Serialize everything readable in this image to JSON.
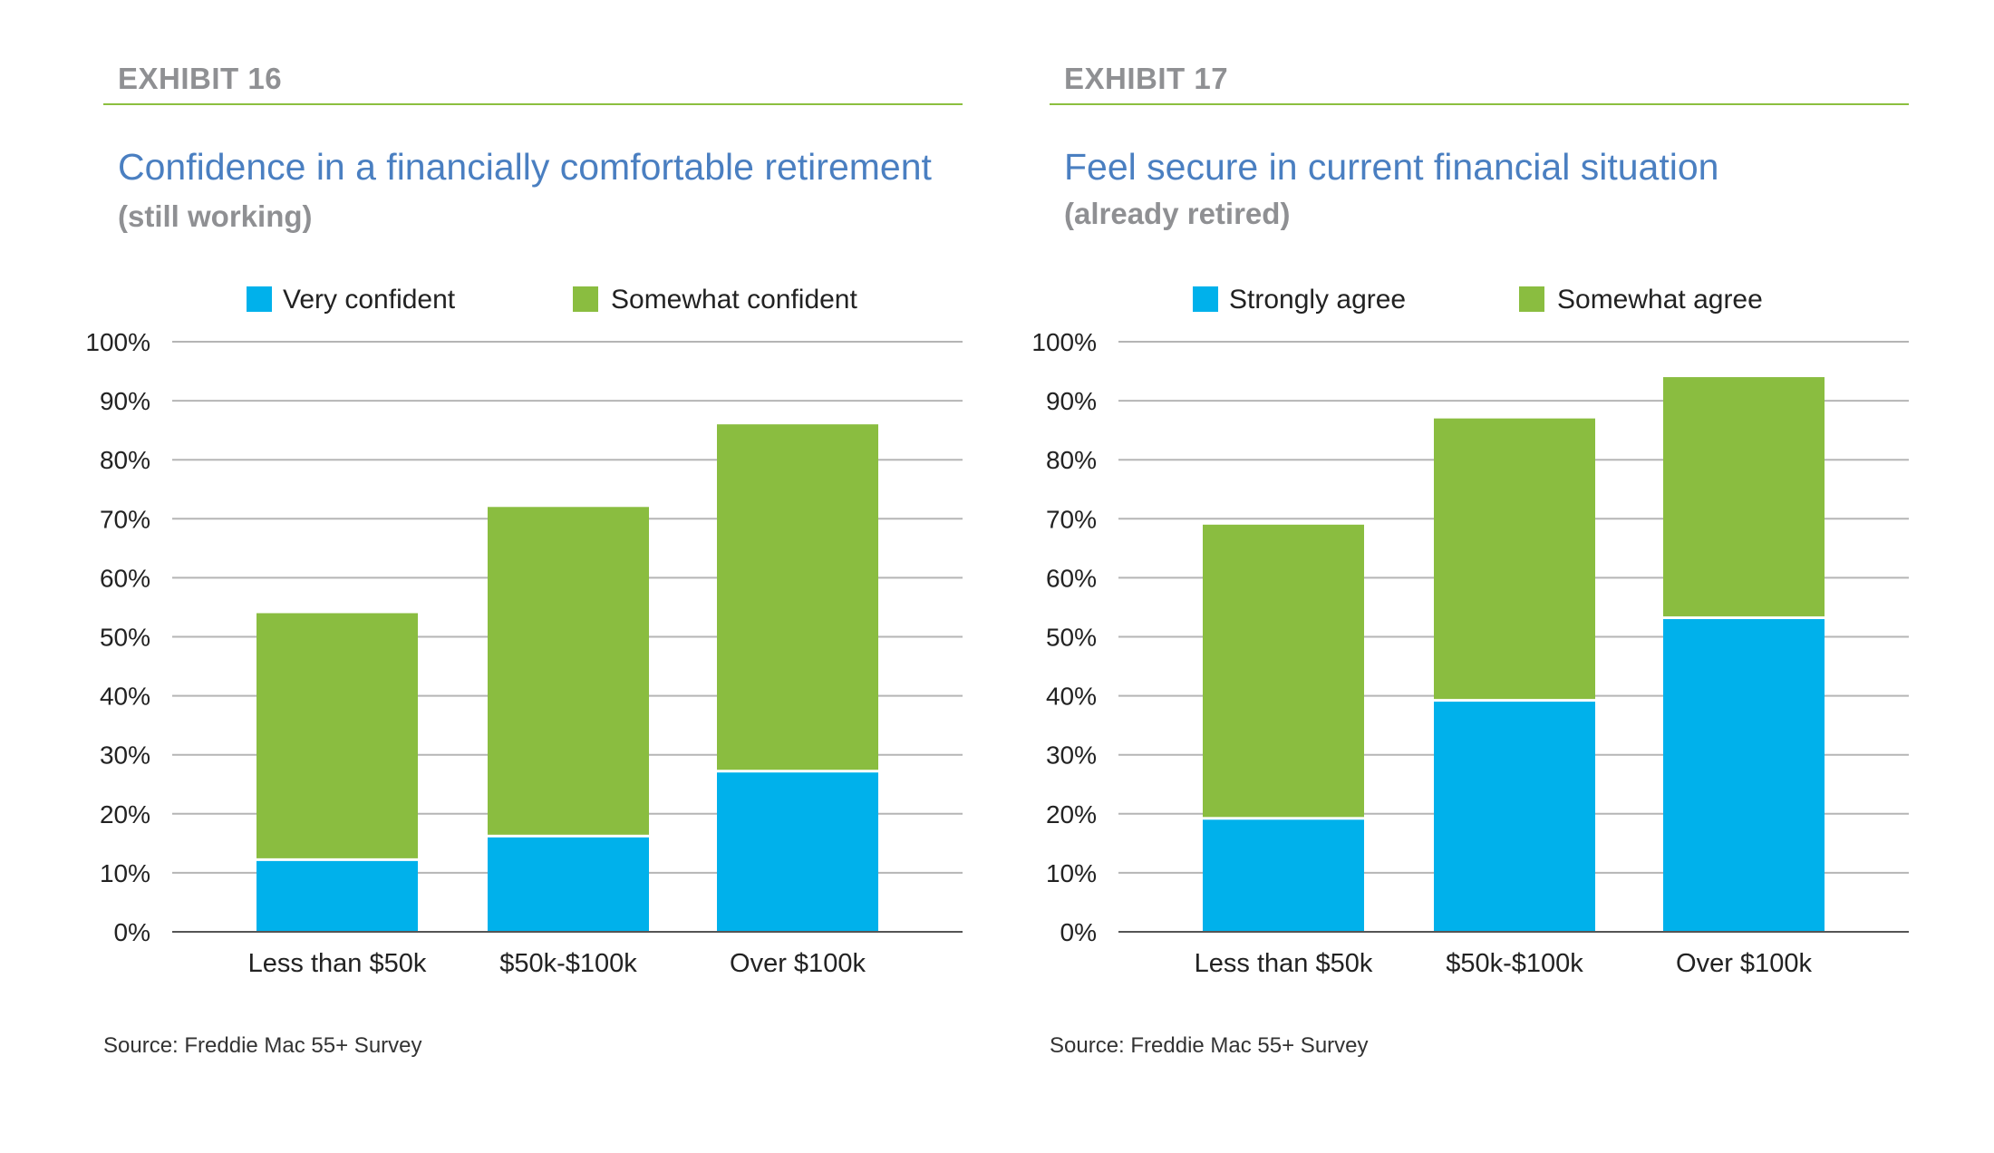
{
  "colors": {
    "series1": "#00b1eb",
    "series2": "#8abd40",
    "grid": "#b5b5b5",
    "axis": "#555555",
    "rule": "#8cbf3f",
    "title": "#4a7fc1",
    "exhibit": "#8f9093"
  },
  "exhibits": [
    {
      "label": "EXHIBIT 16",
      "title_main": "Confidence in a financially comfortable retirement",
      "title_sub": "(still working)",
      "source": "Source: Freddie Mac 55+ Survey"
    },
    {
      "label": "EXHIBIT 17",
      "title_main": "Feel secure in current financial situation",
      "title_sub": "(already retired)",
      "source": "Source: Freddie Mac 55+ Survey"
    }
  ],
  "chart_data": [
    {
      "type": "bar",
      "stacked": true,
      "categories": [
        "Less than $50k",
        "$50k-$100k",
        "Over $100k"
      ],
      "series": [
        {
          "name": "Very confident",
          "values": [
            12,
            16,
            27
          ]
        },
        {
          "name": "Somewhat confident",
          "values": [
            42,
            56,
            59
          ]
        }
      ],
      "ylim": [
        0,
        100
      ],
      "yticks": [
        "0%",
        "10%",
        "20%",
        "30%",
        "40%",
        "50%",
        "60%",
        "70%",
        "80%",
        "90%",
        "100%"
      ],
      "grid": true,
      "legend": "top"
    },
    {
      "type": "bar",
      "stacked": true,
      "categories": [
        "Less than $50k",
        "$50k-$100k",
        "Over $100k"
      ],
      "series": [
        {
          "name": "Strongly agree",
          "values": [
            19,
            39,
            53
          ]
        },
        {
          "name": "Somewhat agree",
          "values": [
            50,
            48,
            41
          ]
        }
      ],
      "ylim": [
        0,
        100
      ],
      "yticks": [
        "0%",
        "10%",
        "20%",
        "30%",
        "40%",
        "50%",
        "60%",
        "70%",
        "80%",
        "90%",
        "100%"
      ],
      "grid": true,
      "legend": "top"
    }
  ]
}
